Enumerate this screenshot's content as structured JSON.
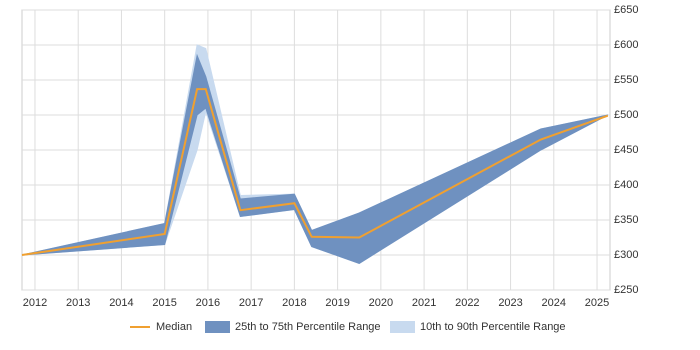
{
  "chart_data": {
    "type": "line",
    "x": [
      2011.7,
      2015.0,
      2015.75,
      2015.95,
      2016.75,
      2018.0,
      2018.4,
      2019.5,
      2023.7,
      2025.25
    ],
    "series": [
      {
        "name": "Median",
        "color": "#f0a030",
        "values": [
          300,
          330,
          537,
          537,
          364,
          374,
          326,
          325,
          465,
          499
        ]
      },
      {
        "name": "25th to 75th Percentile Range",
        "color": "#6f91c0",
        "low": [
          300,
          315,
          500,
          510,
          355,
          365,
          312,
          288,
          450,
          500
        ],
        "high": [
          300,
          345,
          585,
          555,
          380,
          387,
          335,
          360,
          480,
          500
        ]
      },
      {
        "name": "10th to 90th Percentile Range",
        "color": "#c8daef",
        "low": [
          300,
          315,
          450,
          505,
          355,
          365,
          312,
          288,
          450,
          500
        ],
        "high": [
          300,
          345,
          600,
          595,
          385,
          387,
          335,
          360,
          480,
          500
        ]
      }
    ],
    "xlim": [
      2011.7,
      2025.3
    ],
    "xticks": [
      2012,
      2013,
      2014,
      2015,
      2016,
      2017,
      2018,
      2019,
      2020,
      2021,
      2022,
      2023,
      2024,
      2025
    ],
    "ylim": [
      250,
      650
    ],
    "yticks": [
      {
        "value": 250,
        "label": "£250"
      },
      {
        "value": 300,
        "label": "£300"
      },
      {
        "value": 350,
        "label": "£350"
      },
      {
        "value": 400,
        "label": "£400"
      },
      {
        "value": 450,
        "label": "£450"
      },
      {
        "value": 500,
        "label": "£500"
      },
      {
        "value": 550,
        "label": "£550"
      },
      {
        "value": 600,
        "label": "£600"
      },
      {
        "value": 650,
        "label": "£650"
      }
    ],
    "grid": true
  }
}
